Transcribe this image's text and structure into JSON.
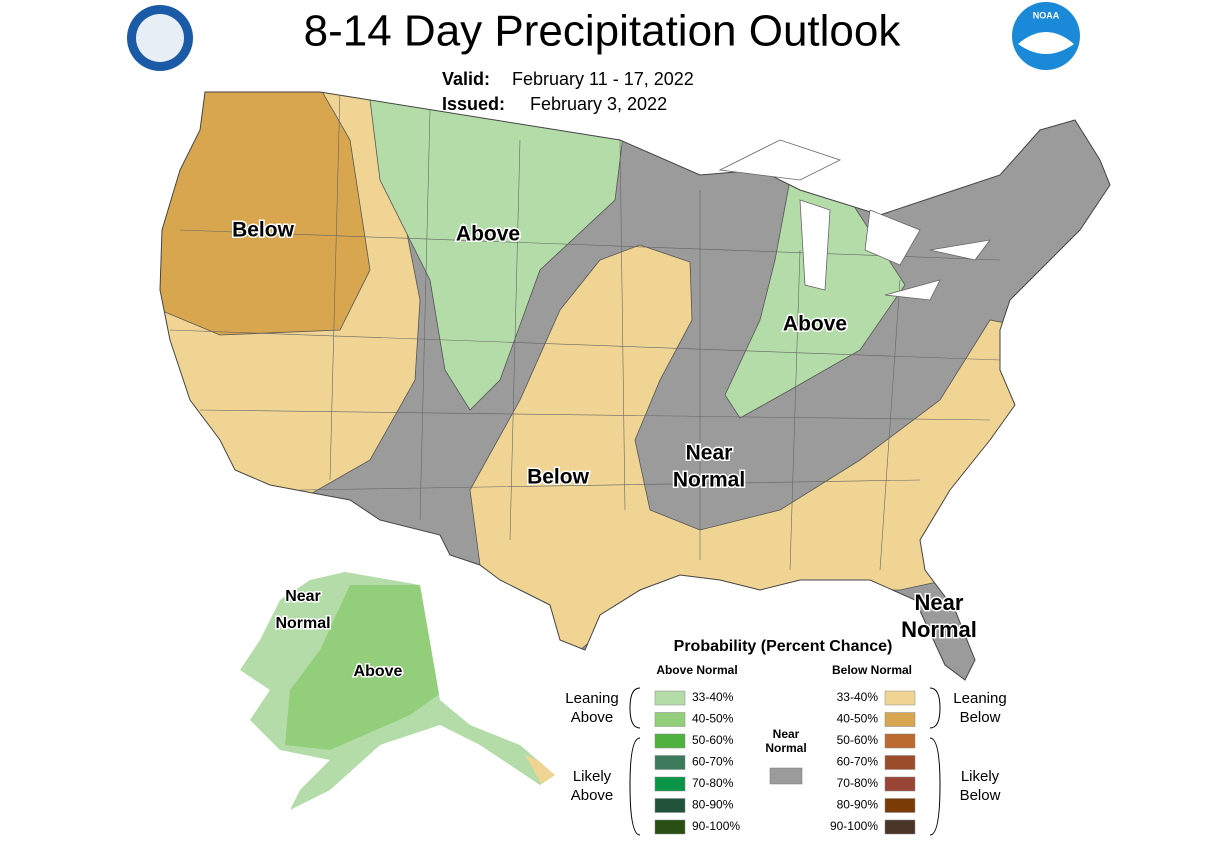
{
  "header": {
    "title": "8-14 Day Precipitation Outlook",
    "valid_label": "Valid:",
    "valid": "February 11 - 17, 2022",
    "issued_label": "Issued:",
    "issued": "February 3, 2022",
    "noaa_logo": "NOAA"
  },
  "map_labels": [
    [
      "Below"
    ],
    [
      "Above"
    ],
    [
      "Above"
    ],
    [
      "Below"
    ],
    [
      "Near",
      "Normal"
    ],
    [
      "Near",
      "Normal"
    ],
    [
      "Near",
      "Normal"
    ],
    [
      "Above"
    ]
  ],
  "legend": {
    "title": "Probability (Percent Chance)",
    "above_header": "Above Normal",
    "below_header": "Below Normal",
    "near": [
      "Near",
      "Normal"
    ],
    "near_color": "#9b9b9b",
    "leaning_above": [
      "Leaning",
      "Above"
    ],
    "likely_above": [
      "Likely",
      "Above"
    ],
    "leaning_below": [
      "Leaning",
      "Below"
    ],
    "likely_below": [
      "Likely",
      "Below"
    ],
    "above_bins": [
      {
        "label": "33-40%",
        "color": "#b3dca8"
      },
      {
        "label": "40-50%",
        "color": "#93cf7a"
      },
      {
        "label": "50-60%",
        "color": "#4fb23f"
      },
      {
        "label": "60-70%",
        "color": "#3b7a5a"
      },
      {
        "label": "70-80%",
        "color": "#0b9447"
      },
      {
        "label": "80-90%",
        "color": "#21523a"
      },
      {
        "label": "90-100%",
        "color": "#284e14"
      }
    ],
    "below_bins": [
      {
        "label": "33-40%",
        "color": "#f0d493"
      },
      {
        "label": "40-50%",
        "color": "#d8a64f"
      },
      {
        "label": "50-60%",
        "color": "#bb6b2f"
      },
      {
        "label": "60-70%",
        "color": "#9b4c2b"
      },
      {
        "label": "70-80%",
        "color": "#9a4438"
      },
      {
        "label": "80-90%",
        "color": "#7b3b06"
      },
      {
        "label": "90-100%",
        "color": "#4b3428"
      }
    ]
  }
}
